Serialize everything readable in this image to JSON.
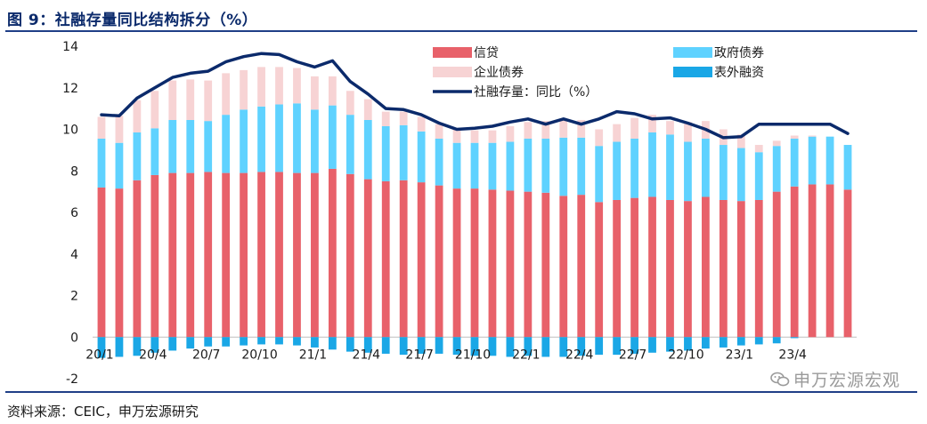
{
  "title": "图 9：社融存量同比结构拆分（%）",
  "source": "资料来源：CEIC，申万宏源研究",
  "watermark": "申万宏源宏观",
  "colors": {
    "credit": "#e8616a",
    "corp_bond": "#f7d3d4",
    "gov_bond": "#5fd2ff",
    "off_balance": "#1aa7e6",
    "line": "#0b2a6b",
    "header": "#0b2a6b",
    "rule": "#1f3f87"
  },
  "chart_data": {
    "type": "bar",
    "stacked": true,
    "xticks": [
      "20/1",
      "20/4",
      "20/7",
      "20/10",
      "21/1",
      "21/4",
      "21/7",
      "21/10",
      "22/1",
      "22/4",
      "22/7",
      "22/10",
      "23/1",
      "23/4"
    ],
    "ylim": [
      -2,
      14
    ],
    "yticks": [
      -2,
      0,
      2,
      4,
      6,
      8,
      10,
      12,
      14
    ],
    "legend_position": "top-right",
    "series": [
      {
        "name": "信贷",
        "type": "bar",
        "color": "#e8616a",
        "values": [
          7.2,
          7.15,
          7.55,
          7.8,
          7.9,
          7.9,
          7.95,
          7.9,
          7.9,
          7.95,
          7.95,
          7.9,
          7.9,
          8.1,
          7.85,
          7.6,
          7.5,
          7.55,
          7.45,
          7.3,
          7.15,
          7.15,
          7.1,
          7.05,
          7.0,
          6.95,
          6.8,
          6.85,
          6.5,
          6.6,
          6.7,
          6.75,
          6.6,
          6.55,
          6.75,
          6.6,
          6.55,
          6.6,
          7.0,
          7.25,
          7.35,
          7.35,
          7.1
        ]
      },
      {
        "name": "政府债券",
        "type": "bar",
        "color": "#5fd2ff",
        "values": [
          2.35,
          2.2,
          2.3,
          2.25,
          2.55,
          2.55,
          2.45,
          2.8,
          3.05,
          3.15,
          3.25,
          3.35,
          3.05,
          3.05,
          2.85,
          2.85,
          2.65,
          2.65,
          2.45,
          2.25,
          2.2,
          2.2,
          2.25,
          2.35,
          2.55,
          2.6,
          2.8,
          2.75,
          2.7,
          2.8,
          2.85,
          3.1,
          3.15,
          2.85,
          2.8,
          2.65,
          2.55,
          2.3,
          2.2,
          2.3,
          2.3,
          2.3,
          2.15
        ]
      },
      {
        "name": "企业债券",
        "type": "bar",
        "color": "#f7d3d4",
        "values": [
          1.05,
          1.3,
          1.55,
          1.8,
          1.9,
          1.95,
          1.95,
          2.0,
          1.9,
          1.9,
          1.8,
          1.7,
          1.6,
          1.4,
          1.15,
          1.0,
          0.7,
          0.65,
          0.7,
          0.7,
          0.7,
          0.6,
          0.6,
          0.75,
          0.8,
          0.85,
          0.85,
          0.85,
          0.8,
          0.85,
          1.0,
          0.85,
          0.65,
          0.95,
          0.85,
          0.75,
          0.65,
          0.35,
          0.25,
          0.15,
          0.05,
          0.0,
          0.0
        ]
      },
      {
        "name": "表外融资",
        "type": "bar",
        "color": "#1aa7e6",
        "values": [
          -1.0,
          -0.95,
          -0.9,
          -0.75,
          -0.65,
          -0.55,
          -0.45,
          -0.45,
          -0.4,
          -0.35,
          -0.35,
          -0.4,
          -0.5,
          -0.6,
          -0.7,
          -0.75,
          -0.8,
          -0.85,
          -0.8,
          -0.8,
          -0.85,
          -0.9,
          -0.9,
          -0.95,
          -0.9,
          -0.95,
          -0.95,
          -0.9,
          -0.85,
          -0.85,
          -0.8,
          -0.75,
          -0.7,
          -0.65,
          -0.55,
          -0.5,
          -0.4,
          -0.35,
          -0.3,
          -0.05,
          0.0,
          0.0,
          0.0
        ]
      },
      {
        "name": "社融存量：同比（%）",
        "type": "line",
        "color": "#0b2a6b",
        "values": [
          10.7,
          10.65,
          11.5,
          12.0,
          12.5,
          12.7,
          12.8,
          13.25,
          13.5,
          13.65,
          13.6,
          13.25,
          13.0,
          13.3,
          12.3,
          11.7,
          11.0,
          10.95,
          10.7,
          10.3,
          10.0,
          10.05,
          10.15,
          10.35,
          10.5,
          10.25,
          10.5,
          10.25,
          10.5,
          10.85,
          10.75,
          10.5,
          10.55,
          10.3,
          10.0,
          9.6,
          9.65,
          10.25,
          10.25,
          10.25,
          10.25,
          10.25,
          9.8
        ]
      }
    ]
  }
}
